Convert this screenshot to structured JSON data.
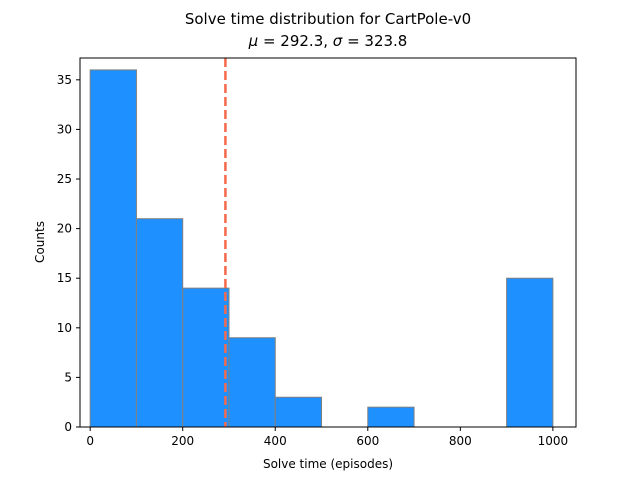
{
  "chart_data": {
    "type": "bar",
    "title": "Solve time distribution for CartPole-v0",
    "subtitle": "μ = 292.3, σ = 323.8",
    "subtitle_parts": {
      "mu_symbol": "μ",
      "mu_text": " = 292.3, ",
      "sigma_symbol": "σ",
      "sigma_text": " = 323.8"
    },
    "xlabel": "Solve time (episodes)",
    "ylabel": "Counts",
    "bin_edges": [
      0,
      100,
      200,
      300,
      400,
      500,
      600,
      700,
      800,
      900,
      1000
    ],
    "values": [
      36,
      21,
      14,
      9,
      3,
      0,
      2,
      0,
      0,
      15
    ],
    "mean_line": 292.3,
    "xlim": [
      -22,
      1050
    ],
    "ylim": [
      0,
      37.2
    ],
    "xticks": [
      0,
      200,
      400,
      600,
      800,
      1000
    ],
    "yticks": [
      0,
      5,
      10,
      15,
      20,
      25,
      30,
      35
    ],
    "grid": false,
    "bar_color": "#1e90ff",
    "bar_edge_color": "#808080",
    "mean_line_color": "#f4694b"
  }
}
